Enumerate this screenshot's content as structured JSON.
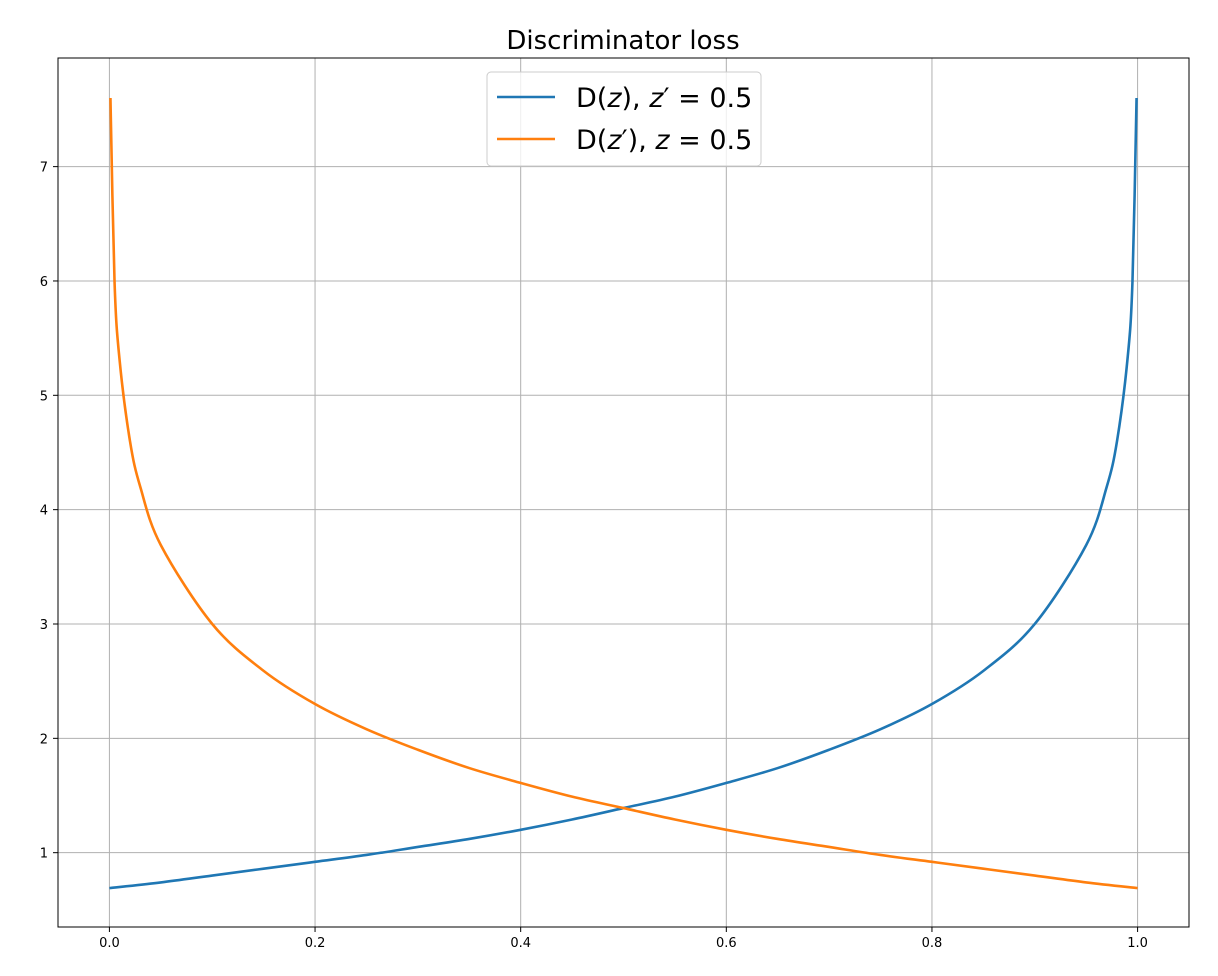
{
  "chart_data": {
    "type": "line",
    "title": "Discriminator loss",
    "xlabel": "",
    "ylabel": "",
    "xlim": [
      -0.05,
      1.05
    ],
    "ylim": [
      0.35,
      7.95
    ],
    "xticks": [
      0.0,
      0.2,
      0.4,
      0.6,
      0.8,
      1.0
    ],
    "xtick_labels": [
      "0.0",
      "0.2",
      "0.4",
      "0.6",
      "0.8",
      "1.0"
    ],
    "yticks": [
      1,
      2,
      3,
      4,
      5,
      6,
      7
    ],
    "ytick_labels": [
      "1",
      "2",
      "3",
      "4",
      "5",
      "6",
      "7"
    ],
    "grid": true,
    "legend_position": "top-center",
    "series": [
      {
        "name_parts": [
          "D(",
          "z",
          "), ",
          "z",
          "′",
          " = 0.5"
        ],
        "color": "#1f77b4",
        "x": [
          0.0,
          0.05,
          0.1,
          0.15,
          0.2,
          0.25,
          0.3,
          0.35,
          0.4,
          0.45,
          0.5,
          0.55,
          0.6,
          0.65,
          0.7,
          0.75,
          0.8,
          0.85,
          0.9,
          0.95,
          0.97,
          0.98,
          0.99,
          0.995,
          0.999
        ],
        "y": [
          0.69,
          0.74,
          0.8,
          0.86,
          0.92,
          0.98,
          1.05,
          1.12,
          1.2,
          1.29,
          1.39,
          1.49,
          1.61,
          1.74,
          1.9,
          2.08,
          2.3,
          2.59,
          3.0,
          3.69,
          4.2,
          4.6,
          5.3,
          5.99,
          7.6
        ]
      },
      {
        "name_parts": [
          "D(",
          "z",
          "′",
          "), ",
          "z",
          " = 0.5"
        ],
        "color": "#ff7f0e",
        "x": [
          0.001,
          0.005,
          0.01,
          0.02,
          0.03,
          0.05,
          0.1,
          0.15,
          0.2,
          0.25,
          0.3,
          0.35,
          0.4,
          0.45,
          0.5,
          0.55,
          0.6,
          0.65,
          0.7,
          0.75,
          0.8,
          0.85,
          0.9,
          0.95,
          1.0
        ],
        "y": [
          7.6,
          5.99,
          5.3,
          4.6,
          4.2,
          3.69,
          3.0,
          2.59,
          2.3,
          2.08,
          1.9,
          1.74,
          1.61,
          1.49,
          1.39,
          1.29,
          1.2,
          1.12,
          1.05,
          0.98,
          0.92,
          0.86,
          0.8,
          0.74,
          0.69
        ]
      }
    ]
  }
}
